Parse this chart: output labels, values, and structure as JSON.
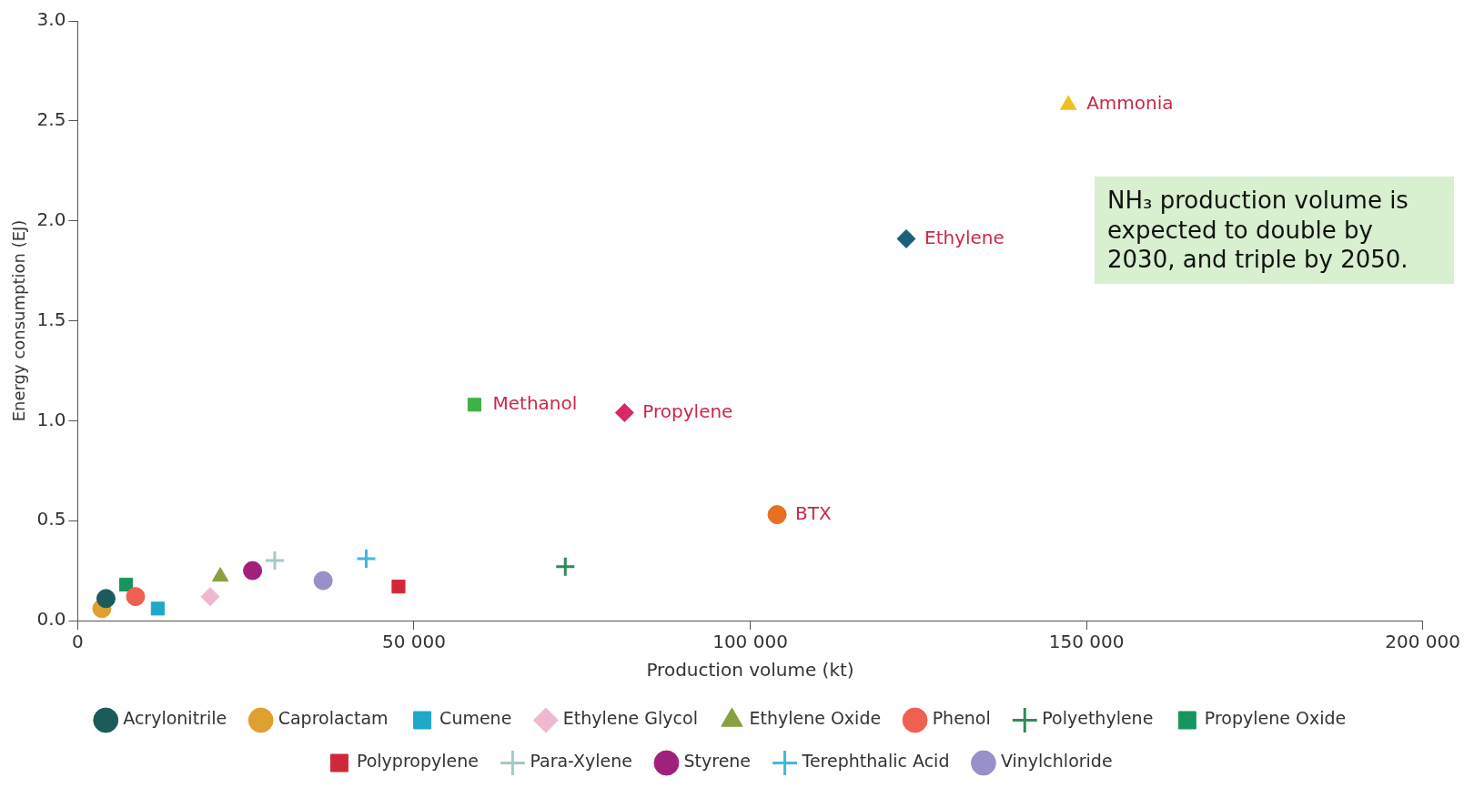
{
  "chart_data": {
    "type": "scatter",
    "xlabel": "Production volume (kt)",
    "ylabel": "Energy consumption (EJ)",
    "xlim": [
      0,
      200000
    ],
    "xticks": [
      0,
      {
        "value": 50000,
        "label": "50 000"
      },
      {
        "value": 100000,
        "label": "100 000"
      },
      {
        "value": 150000,
        "label": "150 000"
      },
      {
        "value": 200000,
        "label": "200 000"
      }
    ],
    "ylim": [
      0,
      3
    ],
    "yticks": [
      {
        "value": 0,
        "label": "0.0"
      },
      {
        "value": 0.5,
        "label": "0.5"
      },
      {
        "value": 1,
        "label": "1.0"
      },
      {
        "value": 1.5,
        "label": "1.5"
      },
      {
        "value": 2,
        "label": "2.0"
      },
      {
        "value": 2.5,
        "label": "2.5"
      },
      {
        "value": 3,
        "label": "3.0"
      }
    ],
    "grid": false,
    "legend": "bottom",
    "series": [
      {
        "name": "Acrylonitrile",
        "color": "#1d5a5a",
        "marker": "circle",
        "x": [
          4200
        ],
        "values": [
          0.11
        ]
      },
      {
        "name": "Caprolactam",
        "color": "#e0a030",
        "marker": "circle",
        "x": [
          3600
        ],
        "values": [
          0.06
        ]
      },
      {
        "name": "Cumene",
        "color": "#20a8c8",
        "marker": "square",
        "x": [
          11900
        ],
        "values": [
          0.06
        ]
      },
      {
        "name": "Ethylene Glycol",
        "color": "#f0b8d0",
        "marker": "diamond",
        "x": [
          19700
        ],
        "values": [
          0.12
        ]
      },
      {
        "name": "Ethylene Oxide",
        "color": "#88a040",
        "marker": "triangle",
        "x": [
          21200
        ],
        "values": [
          0.22
        ]
      },
      {
        "name": "Phenol",
        "color": "#f06050",
        "marker": "circle",
        "x": [
          8600
        ],
        "values": [
          0.12
        ]
      },
      {
        "name": "Polyethylene",
        "color": "#2e8b57",
        "marker": "cross",
        "x": [
          72500
        ],
        "values": [
          0.27
        ]
      },
      {
        "name": "Propylene Oxide",
        "color": "#17955e",
        "marker": "square",
        "x": [
          7200
        ],
        "values": [
          0.18
        ]
      },
      {
        "name": "Polypropylene",
        "color": "#d0283a",
        "marker": "square",
        "x": [
          47700
        ],
        "values": [
          0.17
        ]
      },
      {
        "name": "Para-Xylene",
        "color": "#a8c8c8",
        "marker": "cross",
        "x": [
          29300
        ],
        "values": [
          0.3
        ]
      },
      {
        "name": "Styrene",
        "color": "#a0207a",
        "marker": "circle",
        "x": [
          26000
        ],
        "values": [
          0.25
        ]
      },
      {
        "name": "Terephthalic Acid",
        "color": "#40b8e0",
        "marker": "cross",
        "x": [
          42900
        ],
        "values": [
          0.31
        ]
      },
      {
        "name": "Vinylchloride",
        "color": "#9890c8",
        "marker": "circle",
        "x": [
          36500
        ],
        "values": [
          0.2
        ]
      },
      {
        "color": "#40b048",
        "marker": "square",
        "x": [
          59000
        ],
        "values": [
          1.08
        ]
      },
      {
        "color": "#d82868",
        "marker": "diamond",
        "x": [
          81300
        ],
        "values": [
          1.04
        ]
      },
      {
        "color": "#e87020",
        "marker": "circle",
        "x": [
          104000
        ],
        "values": [
          0.53
        ]
      },
      {
        "color": "#f0c020",
        "marker": "triangle",
        "x": [
          147300
        ],
        "values": [
          2.58
        ]
      },
      {
        "color": "#1a5e78",
        "marker": "diamond",
        "x": [
          123200
        ],
        "values": [
          1.91
        ]
      }
    ],
    "annotations": [
      {
        "text": "Methanol",
        "x": 59000,
        "y": 1.08
      },
      {
        "text": "Propylene",
        "x": 81300,
        "y": 1.04
      },
      {
        "text": "BTX",
        "x": 104000,
        "y": 0.53
      },
      {
        "text": "Ammonia",
        "x": 147300,
        "y": 2.58
      },
      {
        "text": "Ethylene",
        "x": 123200,
        "y": 1.91
      },
      "NH₃ production volume is expected to double by 2030, and triple by 2050."
    ]
  }
}
